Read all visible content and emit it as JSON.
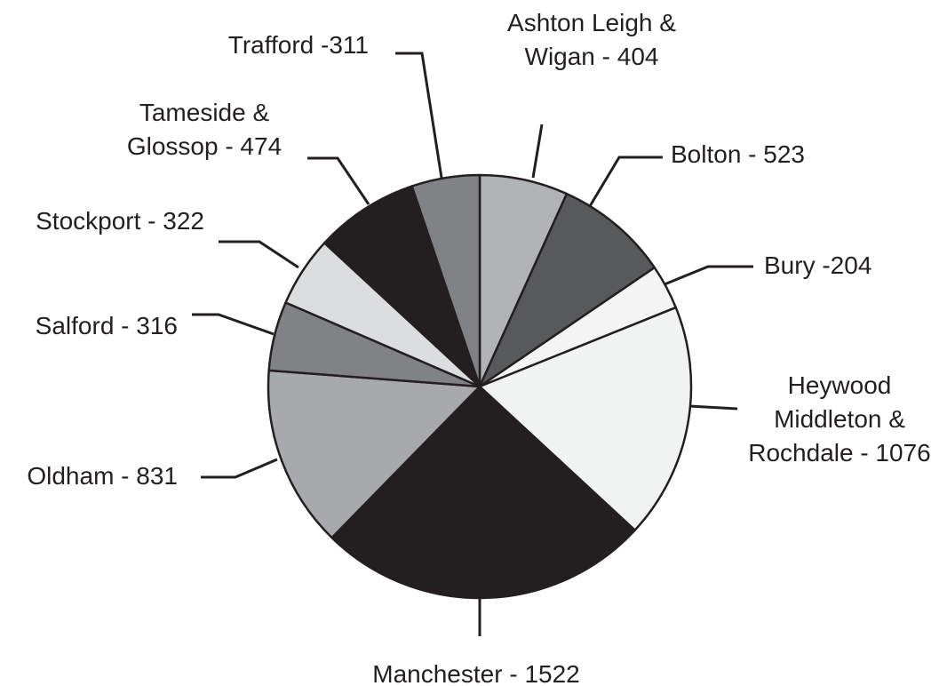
{
  "chart_data": {
    "type": "pie",
    "start_angle_deg": 0,
    "direction": "clockwise",
    "slices": [
      {
        "label": [
          "Ashton Leigh &",
          "Wigan - 404"
        ],
        "value": 404,
        "color": "#b1b3b6"
      },
      {
        "label": [
          "Bolton - 523"
        ],
        "value": 523,
        "color": "#58595b"
      },
      {
        "label": [
          "Bury -204"
        ],
        "value": 204,
        "color": "#f4f4f4"
      },
      {
        "label": [
          "Heywood",
          "Middleton &",
          "Rochdale - 1076"
        ],
        "value": 1076,
        "color": "#f1f2f2"
      },
      {
        "label": [
          "Manchester - 1522"
        ],
        "value": 1522,
        "color": "#231f20"
      },
      {
        "label": [
          "Oldham - 831"
        ],
        "value": 831,
        "color": "#a7a9ac"
      },
      {
        "label": [
          "Salford - 316"
        ],
        "value": 316,
        "color": "#808285"
      },
      {
        "label": [
          "Stockport - 322"
        ],
        "value": 322,
        "color": "#dcddde"
      },
      {
        "label": [
          "Tameside &",
          "Glossop - 474"
        ],
        "value": 474,
        "color": "#231f20"
      },
      {
        "label": [
          "Trafford -311"
        ],
        "value": 311,
        "color": "#808285"
      }
    ]
  }
}
